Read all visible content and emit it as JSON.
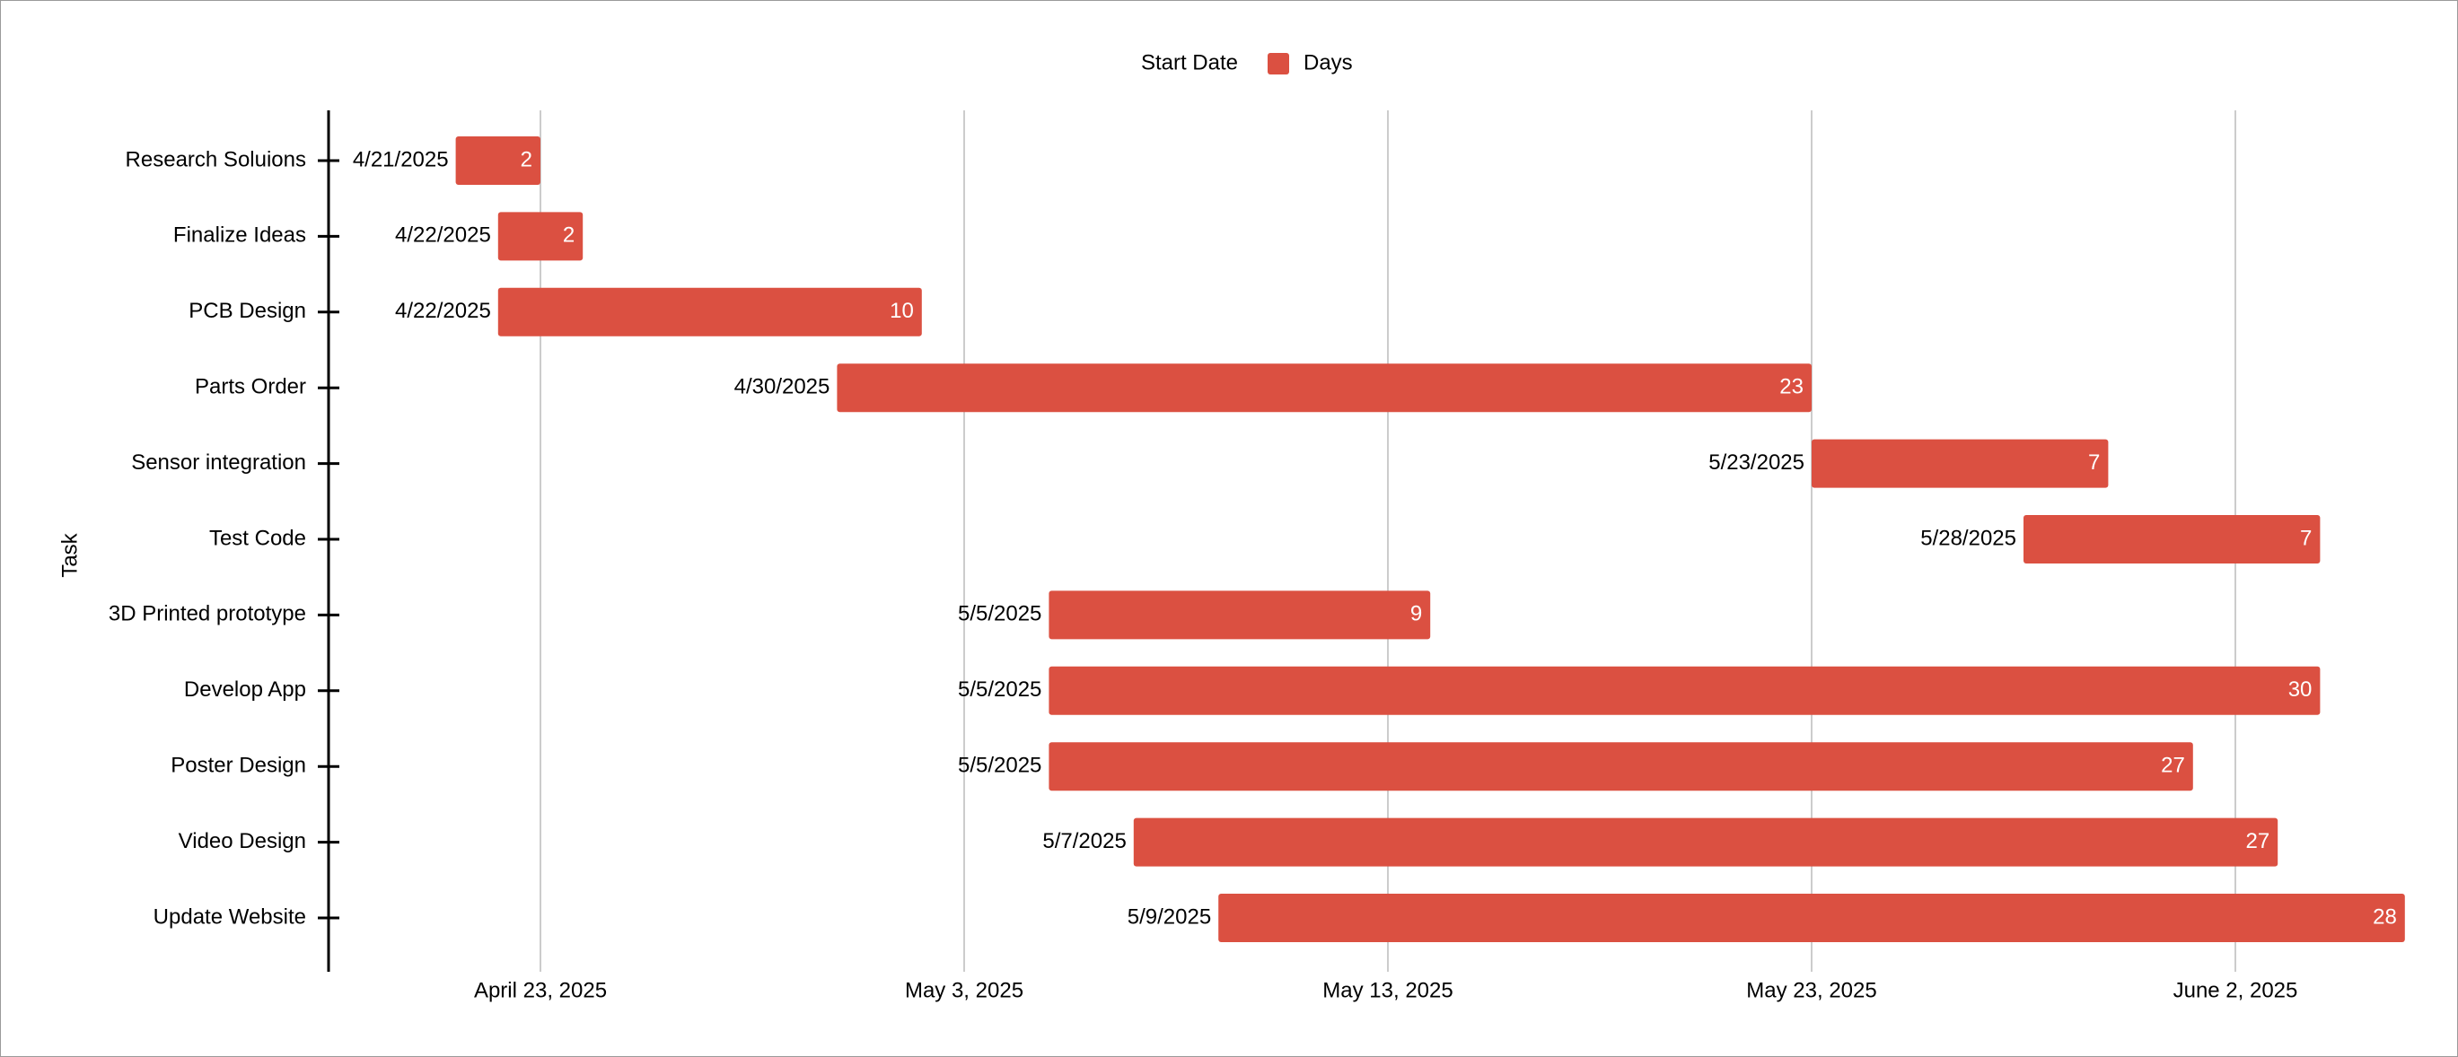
{
  "colors": {
    "bar": "#DB5041",
    "bar_label": "#FFFFFF",
    "grid": "#CCCCCC",
    "axis": "#000000",
    "background": "#FFFFFF"
  },
  "legend": {
    "items": [
      {
        "label": "Start Date",
        "swatch": false
      },
      {
        "label": "Days",
        "swatch": true
      }
    ],
    "position": "top-center"
  },
  "chart_data": {
    "type": "bar",
    "orientation": "horizontal",
    "stacked": true,
    "ylabel": "Task",
    "xlabel": "",
    "x_axis_type": "date",
    "xlim": [
      "2025-04-18",
      "2025-06-06"
    ],
    "x_ticks": [
      {
        "date": "2025-04-23",
        "label": "April 23, 2025"
      },
      {
        "date": "2025-05-03",
        "label": "May 3, 2025"
      },
      {
        "date": "2025-05-13",
        "label": "May 13, 2025"
      },
      {
        "date": "2025-05-23",
        "label": "May 23, 2025"
      },
      {
        "date": "2025-06-02",
        "label": "June 2, 2025"
      }
    ],
    "grid": true,
    "categories": [
      "Research Soluions",
      "Finalize Ideas",
      "PCB Design",
      "Parts Order",
      "Sensor integration",
      "Test Code",
      "3D Printed prototype",
      "Develop App",
      "Poster Design",
      "Video Design",
      "Update Website"
    ],
    "series": [
      {
        "name": "Start Date",
        "visible": false,
        "values": [
          "2025-04-21",
          "2025-04-22",
          "2025-04-22",
          "2025-04-30",
          "2025-05-23",
          "2025-05-28",
          "2025-05-05",
          "2025-05-05",
          "2025-05-05",
          "2025-05-07",
          "2025-05-09"
        ],
        "data_labels": [
          "4/21/2025",
          "4/22/2025",
          "4/22/2025",
          "4/30/2025",
          "5/23/2025",
          "5/28/2025",
          "5/5/2025",
          "5/5/2025",
          "5/5/2025",
          "5/7/2025",
          "5/9/2025"
        ]
      },
      {
        "name": "Days",
        "visible": true,
        "values": [
          2,
          2,
          10,
          23,
          7,
          7,
          9,
          30,
          27,
          27,
          28
        ]
      }
    ]
  }
}
